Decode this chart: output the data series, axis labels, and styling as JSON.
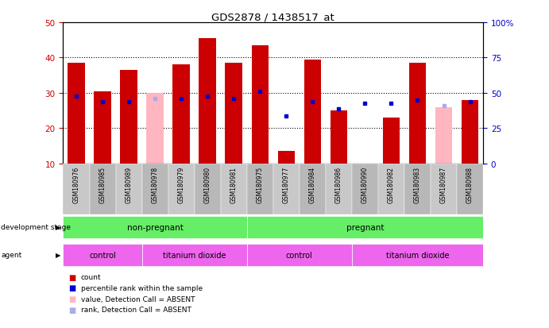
{
  "title": "GDS2878 / 1438517_at",
  "samples": [
    "GSM180976",
    "GSM180985",
    "GSM180989",
    "GSM180978",
    "GSM180979",
    "GSM180980",
    "GSM180981",
    "GSM180975",
    "GSM180977",
    "GSM180984",
    "GSM180986",
    "GSM180990",
    "GSM180982",
    "GSM180983",
    "GSM180987",
    "GSM180988"
  ],
  "counts": [
    38.5,
    30.5,
    36.5,
    null,
    38.0,
    45.5,
    38.5,
    43.5,
    13.5,
    39.5,
    25.0,
    null,
    23.0,
    38.5,
    null,
    28.0
  ],
  "counts_absent": [
    null,
    null,
    null,
    30.0,
    null,
    null,
    null,
    null,
    null,
    null,
    null,
    null,
    null,
    null,
    26.0,
    null
  ],
  "percentile_rank": [
    29.0,
    27.5,
    27.5,
    null,
    28.5,
    29.0,
    28.5,
    30.5,
    23.5,
    27.5,
    25.5,
    27.0,
    27.0,
    28.0,
    null,
    27.5
  ],
  "percentile_rank_absent": [
    null,
    null,
    null,
    28.5,
    null,
    null,
    null,
    null,
    null,
    null,
    null,
    null,
    null,
    null,
    26.5,
    null
  ],
  "ylim_left": [
    10,
    50
  ],
  "ylim_right": [
    0,
    100
  ],
  "yticks_left": [
    10,
    20,
    30,
    40,
    50
  ],
  "yticks_right": [
    0,
    25,
    50,
    75,
    100
  ],
  "bar_color": "#CC0000",
  "bar_absent_color": "#FFB6C1",
  "rank_color": "#0000CC",
  "rank_absent_color": "#AAAAEE",
  "grid_color": "#000000",
  "dev_stage_labels": [
    "non-pregnant",
    "pregnant"
  ],
  "dev_stage_ranges": [
    [
      0,
      7
    ],
    [
      7,
      16
    ]
  ],
  "dev_stage_color": "#66EE66",
  "agent_labels": [
    "control",
    "titanium dioxide",
    "control",
    "titanium dioxide"
  ],
  "agent_ranges": [
    [
      0,
      3
    ],
    [
      3,
      7
    ],
    [
      7,
      11
    ],
    [
      11,
      16
    ]
  ],
  "agent_color": "#EE66EE",
  "background_color": "#FFFFFF",
  "plot_bg_color": "#FFFFFF",
  "axis_color_left": "#CC0000",
  "axis_color_right": "#0000CC"
}
